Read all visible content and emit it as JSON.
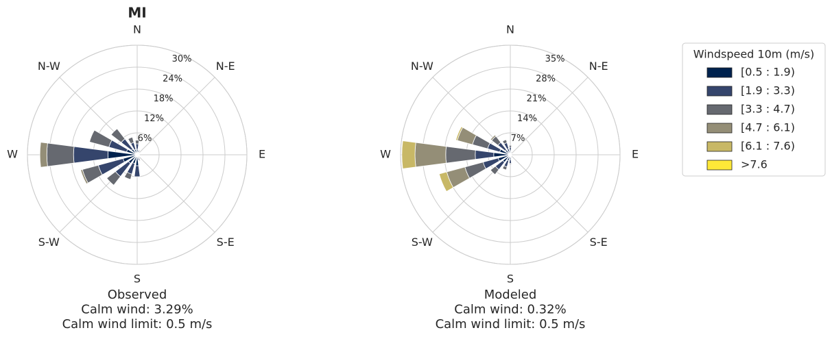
{
  "title": "MI",
  "legend": {
    "title": "Windspeed 10m (m/s)",
    "entries": [
      {
        "name": "[0.5 : 1.9)",
        "color": "#00224e"
      },
      {
        "name": "[1.9 : 3.3)",
        "color": "#35456c"
      },
      {
        "name": "[3.3 : 4.7)",
        "color": "#666970"
      },
      {
        "name": "[4.7 : 6.1)",
        "color": "#948e77"
      },
      {
        "name": "[6.1 : 7.6)",
        "color": "#c8b866"
      },
      {
        "name": ">7.6",
        "color": "#fee838"
      }
    ]
  },
  "chart_data": [
    {
      "type": "windrose",
      "xlabel": [
        "Observed",
        "Calm wind: 3.29%",
        "Calm wind limit: 0.5 m/s"
      ],
      "categories": [
        "N",
        null,
        "N-E",
        null,
        "E",
        null,
        "S-E",
        null,
        "S",
        null,
        "S-W",
        null,
        "W",
        null,
        "N-W",
        null
      ],
      "rlim": [
        0,
        30
      ],
      "rticks": [
        {
          "value": 6,
          "label": "6%"
        },
        {
          "value": 12,
          "label": "12%"
        },
        {
          "value": 18,
          "label": "18%"
        },
        {
          "value": 24,
          "label": "24%"
        },
        {
          "value": 30,
          "label": "30%"
        }
      ],
      "series": [
        {
          "values": [
            1.5,
            0.8,
            0.5,
            0.4,
            0.4,
            0.4,
            0.5,
            1,
            3,
            2.5,
            3,
            4,
            8,
            3,
            2,
            1.5
          ]
        },
        {
          "values": [
            1.5,
            0.5,
            0.3,
            0.2,
            0.2,
            0.2,
            0.3,
            0.6,
            3,
            3,
            4.5,
            7,
            9.4,
            5,
            3.5,
            2
          ]
        },
        {
          "values": [
            1,
            0.2,
            0,
            0,
            0,
            0,
            0,
            0.2,
            0,
            1.5,
            3,
            4.5,
            7.3,
            5.5,
            3.5,
            1.5
          ]
        },
        {
          "values": [
            0,
            0,
            0,
            0,
            0,
            0,
            0,
            0,
            0,
            0,
            0,
            0.5,
            1.9,
            0,
            0,
            0
          ]
        },
        {
          "values": [
            0,
            0,
            0,
            0,
            0,
            0,
            0,
            0,
            0,
            0,
            0,
            0,
            0,
            0,
            0,
            0
          ]
        },
        {
          "values": [
            0,
            0,
            0,
            0,
            0,
            0,
            0,
            0,
            0,
            0,
            0,
            0,
            0,
            0,
            0,
            0
          ]
        }
      ]
    },
    {
      "type": "windrose",
      "xlabel": [
        "Modeled",
        "Calm wind: 0.32%",
        "Calm wind limit: 0.5 m/s"
      ],
      "categories": [
        "N",
        null,
        "N-E",
        null,
        "E",
        null,
        "S-E",
        null,
        "S",
        null,
        "S-W",
        null,
        "W",
        null,
        "N-W",
        null
      ],
      "rlim": [
        0,
        35
      ],
      "rticks": [
        {
          "value": 7,
          "label": "7%"
        },
        {
          "value": 14,
          "label": "14%"
        },
        {
          "value": 21,
          "label": "21%"
        },
        {
          "value": 28,
          "label": "28%"
        },
        {
          "value": 35,
          "label": "35%"
        }
      ],
      "series": [
        {
          "values": [
            1.2,
            0.6,
            0.4,
            0.3,
            0.3,
            0.3,
            0.4,
            0.6,
            1.5,
            2,
            3,
            4,
            5.3,
            3.5,
            2,
            2
          ]
        },
        {
          "values": [
            1.2,
            0.4,
            0.2,
            0.1,
            0.1,
            0.1,
            0.2,
            0.4,
            1.2,
            2,
            3,
            5,
            5.9,
            4,
            3,
            2
          ]
        },
        {
          "values": [
            0.6,
            0.1,
            0,
            0,
            0,
            0,
            0,
            0,
            0.3,
            1,
            2,
            6,
            9.4,
            5,
            2.5,
            1
          ]
        },
        {
          "values": [
            0,
            0,
            0,
            0,
            0,
            0,
            0,
            0,
            0,
            0,
            0,
            6,
            9.8,
            5,
            0.5,
            0
          ]
        },
        {
          "values": [
            0,
            0,
            0,
            0,
            0,
            0,
            0,
            0,
            0,
            0,
            0,
            2.5,
            4.2,
            0.5,
            0,
            0
          ]
        },
        {
          "values": [
            0,
            0,
            0,
            0,
            0,
            0,
            0,
            0,
            0,
            0,
            0,
            0,
            0,
            0,
            0,
            0
          ]
        }
      ]
    }
  ]
}
